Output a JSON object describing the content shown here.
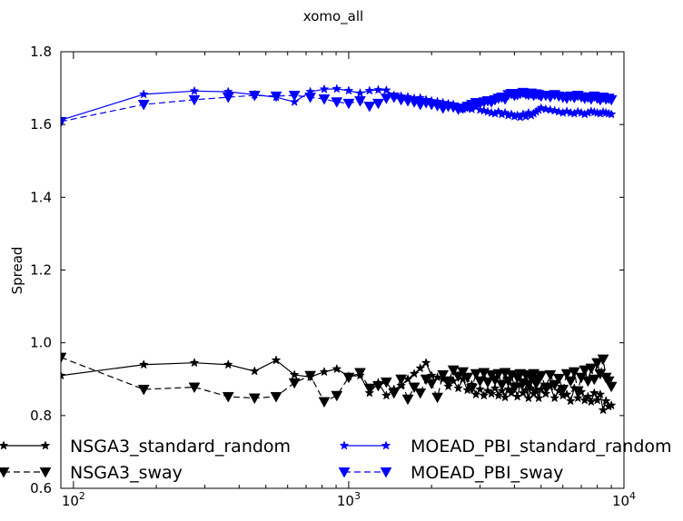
{
  "chart_data": {
    "type": "line",
    "title": "xomo_all",
    "xlabel": "",
    "ylabel": "Spread",
    "xscale": "log",
    "xlim": [
      90,
      10000
    ],
    "ylim": [
      0.6,
      1.8
    ],
    "grid": false,
    "legend_position": "bottom",
    "x_ticks": [
      100,
      1000,
      10000
    ],
    "x_tick_labels": [
      {
        "base": "10",
        "exp": "2"
      },
      {
        "base": "10",
        "exp": "3"
      },
      {
        "base": "10",
        "exp": "4"
      }
    ],
    "y_ticks": [
      0.6,
      0.8,
      1.0,
      1.2,
      1.4,
      1.6,
      1.8
    ],
    "y_tick_labels": [
      "0.6",
      "0.8",
      "1.0",
      "1.2",
      "1.4",
      "1.6",
      "1.8"
    ],
    "series": [
      {
        "name": "NSGA3_standard_random",
        "color": "#000000",
        "line": "solid",
        "marker": "star",
        "x": [
          90,
          180,
          275,
          365,
          455,
          545,
          635,
          725,
          815,
          905,
          1000,
          1100,
          1190,
          1280,
          1370,
          1460,
          1550,
          1640,
          1730,
          1820,
          1910,
          2000,
          2100,
          2200,
          2300,
          2400,
          2500,
          2600,
          2700,
          2800,
          2900,
          3000,
          3100,
          3200,
          3300,
          3400,
          3500,
          3600,
          3700,
          3800,
          3900,
          4000,
          4100,
          4200,
          4300,
          4400,
          4500,
          4600,
          4700,
          4800,
          4900,
          5000,
          5200,
          5400,
          5600,
          5800,
          6000,
          6200,
          6400,
          6600,
          6800,
          7000,
          7200,
          7400,
          7600,
          7800,
          8000,
          8200,
          8400,
          8600,
          8800,
          9000
        ],
        "y": [
          0.91,
          0.94,
          0.945,
          0.94,
          0.922,
          0.952,
          0.912,
          0.906,
          0.92,
          0.928,
          0.908,
          0.91,
          0.862,
          0.89,
          0.855,
          0.872,
          0.882,
          0.9,
          0.915,
          0.93,
          0.945,
          0.91,
          0.905,
          0.9,
          0.88,
          0.895,
          0.875,
          0.9,
          0.87,
          0.885,
          0.858,
          0.872,
          0.855,
          0.868,
          0.86,
          0.875,
          0.855,
          0.868,
          0.85,
          0.872,
          0.862,
          0.88,
          0.852,
          0.885,
          0.862,
          0.87,
          0.848,
          0.875,
          0.86,
          0.87,
          0.848,
          0.872,
          0.86,
          0.88,
          0.848,
          0.868,
          0.855,
          0.858,
          0.84,
          0.875,
          0.848,
          0.865,
          0.842,
          0.852,
          0.838,
          0.862,
          0.842,
          0.858,
          0.815,
          0.84,
          0.825,
          0.828
        ]
      },
      {
        "name": "NSGA3_sway",
        "color": "#000000",
        "line": "dashed",
        "marker": "triangle-down",
        "x": [
          90,
          180,
          275,
          365,
          455,
          545,
          635,
          725,
          815,
          905,
          1000,
          1100,
          1190,
          1280,
          1370,
          1460,
          1550,
          1640,
          1730,
          1820,
          1910,
          2000,
          2100,
          2200,
          2300,
          2400,
          2500,
          2600,
          2700,
          2800,
          2900,
          3000,
          3100,
          3200,
          3300,
          3400,
          3500,
          3600,
          3700,
          3800,
          3900,
          4000,
          4100,
          4200,
          4300,
          4400,
          4500,
          4600,
          4700,
          4800,
          4900,
          5000,
          5200,
          5400,
          5600,
          5800,
          6000,
          6200,
          6400,
          6600,
          6800,
          7000,
          7200,
          7400,
          7600,
          7800,
          8000,
          8200,
          8400,
          8600,
          8800,
          9000
        ],
        "y": [
          0.96,
          0.872,
          0.878,
          0.852,
          0.848,
          0.852,
          0.89,
          0.91,
          0.838,
          0.855,
          0.905,
          0.918,
          0.875,
          0.882,
          0.892,
          0.862,
          0.9,
          0.845,
          0.878,
          0.862,
          0.9,
          0.888,
          0.85,
          0.912,
          0.895,
          0.925,
          0.908,
          0.92,
          0.905,
          0.875,
          0.915,
          0.895,
          0.918,
          0.892,
          0.912,
          0.898,
          0.915,
          0.885,
          0.918,
          0.895,
          0.912,
          0.878,
          0.905,
          0.915,
          0.89,
          0.912,
          0.885,
          0.905,
          0.915,
          0.888,
          0.9,
          0.91,
          0.878,
          0.912,
          0.885,
          0.902,
          0.872,
          0.915,
          0.895,
          0.92,
          0.868,
          0.905,
          0.925,
          0.895,
          0.93,
          0.9,
          0.945,
          0.915,
          0.955,
          0.905,
          0.895,
          0.88
        ]
      },
      {
        "name": "MOEAD_PBI_standard_random",
        "color": "#0000ff",
        "line": "solid",
        "marker": "star",
        "x": [
          90,
          180,
          275,
          365,
          455,
          545,
          635,
          725,
          815,
          905,
          1000,
          1100,
          1190,
          1280,
          1370,
          1460,
          1550,
          1640,
          1730,
          1820,
          1910,
          2000,
          2100,
          2200,
          2300,
          2400,
          2500,
          2600,
          2700,
          2800,
          2900,
          3000,
          3100,
          3200,
          3300,
          3400,
          3500,
          3600,
          3700,
          3800,
          3900,
          4000,
          4100,
          4200,
          4300,
          4400,
          4500,
          4600,
          4700,
          4800,
          4900,
          5000,
          5200,
          5400,
          5600,
          5800,
          6000,
          6200,
          6400,
          6600,
          6800,
          7000,
          7200,
          7400,
          7600,
          7800,
          8000,
          8200,
          8400,
          8600,
          8800,
          9000
        ],
        "y": [
          1.612,
          1.683,
          1.692,
          1.69,
          1.682,
          1.675,
          1.662,
          1.69,
          1.697,
          1.698,
          1.693,
          1.686,
          1.693,
          1.695,
          1.694,
          1.68,
          1.678,
          1.676,
          1.672,
          1.673,
          1.668,
          1.665,
          1.663,
          1.66,
          1.657,
          1.655,
          1.648,
          1.642,
          1.645,
          1.642,
          1.648,
          1.64,
          1.638,
          1.635,
          1.632,
          1.63,
          1.635,
          1.628,
          1.632,
          1.625,
          1.628,
          1.622,
          1.625,
          1.62,
          1.628,
          1.622,
          1.632,
          1.625,
          1.63,
          1.635,
          1.64,
          1.645,
          1.642,
          1.64,
          1.638,
          1.635,
          1.632,
          1.636,
          1.632,
          1.63,
          1.635,
          1.632,
          1.628,
          1.632,
          1.636,
          1.634,
          1.632,
          1.63,
          1.634,
          1.632,
          1.63,
          1.628
        ]
      },
      {
        "name": "MOEAD_PBI_sway",
        "color": "#0000ff",
        "line": "dashed",
        "marker": "triangle-down",
        "x": [
          90,
          180,
          275,
          365,
          455,
          545,
          635,
          725,
          815,
          905,
          1000,
          1100,
          1190,
          1280,
          1370,
          1460,
          1550,
          1640,
          1730,
          1820,
          1910,
          2000,
          2100,
          2200,
          2300,
          2400,
          2500,
          2600,
          2700,
          2800,
          2900,
          3000,
          3100,
          3200,
          3300,
          3400,
          3500,
          3600,
          3700,
          3800,
          3900,
          4000,
          4100,
          4200,
          4300,
          4400,
          4500,
          4600,
          4700,
          4800,
          4900,
          5000,
          5200,
          5400,
          5600,
          5800,
          6000,
          6200,
          6400,
          6600,
          6800,
          7000,
          7200,
          7400,
          7600,
          7800,
          8000,
          8200,
          8400,
          8600,
          8800,
          9000
        ],
        "y": [
          1.608,
          1.655,
          1.668,
          1.675,
          1.68,
          1.678,
          1.68,
          1.675,
          1.67,
          1.662,
          1.658,
          1.665,
          1.65,
          1.658,
          1.672,
          1.675,
          1.668,
          1.665,
          1.662,
          1.655,
          1.66,
          1.655,
          1.652,
          1.645,
          1.65,
          1.648,
          1.642,
          1.645,
          1.65,
          1.655,
          1.66,
          1.658,
          1.662,
          1.665,
          1.662,
          1.668,
          1.672,
          1.675,
          1.67,
          1.682,
          1.685,
          1.68,
          1.682,
          1.685,
          1.688,
          1.684,
          1.682,
          1.686,
          1.68,
          1.684,
          1.682,
          1.678,
          1.68,
          1.676,
          1.682,
          1.678,
          1.675,
          1.672,
          1.678,
          1.674,
          1.68,
          1.676,
          1.672,
          1.675,
          1.67,
          1.678,
          1.672,
          1.668,
          1.675,
          1.67,
          1.672,
          1.668
        ]
      }
    ]
  }
}
